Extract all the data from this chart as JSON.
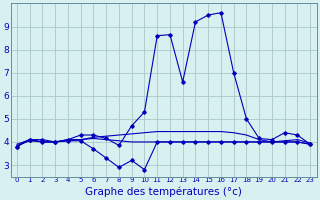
{
  "x": [
    0,
    1,
    2,
    3,
    4,
    5,
    6,
    7,
    8,
    9,
    10,
    11,
    12,
    13,
    14,
    15,
    16,
    17,
    18,
    19,
    20,
    21,
    22,
    23
  ],
  "y_main": [
    3.8,
    4.1,
    4.1,
    4.0,
    4.1,
    4.3,
    4.3,
    4.15,
    3.85,
    4.7,
    5.3,
    8.6,
    8.65,
    6.6,
    9.2,
    9.5,
    9.6,
    7.0,
    5.0,
    4.15,
    4.1,
    4.4,
    4.3,
    3.9
  ],
  "y_flat1": [
    3.9,
    4.1,
    4.0,
    4.0,
    4.1,
    4.1,
    4.15,
    4.1,
    4.05,
    4.0,
    4.0,
    4.0,
    4.0,
    4.0,
    4.0,
    4.0,
    4.0,
    4.0,
    4.0,
    4.0,
    4.0,
    4.05,
    4.1,
    3.95
  ],
  "y_flat2": [
    3.85,
    4.05,
    4.0,
    4.0,
    4.05,
    4.1,
    4.2,
    4.25,
    4.3,
    4.35,
    4.4,
    4.45,
    4.45,
    4.45,
    4.45,
    4.45,
    4.45,
    4.4,
    4.3,
    4.1,
    4.0,
    4.0,
    4.0,
    3.9
  ],
  "y_dip": [
    3.8,
    4.1,
    4.0,
    4.0,
    4.05,
    4.05,
    3.7,
    3.3,
    2.9,
    3.2,
    2.8,
    4.0,
    4.0,
    4.0,
    4.0,
    4.0,
    4.0,
    4.0,
    4.0,
    4.0,
    4.0,
    4.0,
    4.0,
    3.9
  ],
  "bg_color": "#d8f0f0",
  "grid_color": "#a8c8c8",
  "line_color": "#0000bb",
  "xlabel": "Graphe des températures (°c)",
  "xlabel_fontsize": 7.5,
  "ylim": [
    2.5,
    10.0
  ],
  "xlim": [
    -0.5,
    23.5
  ],
  "yticks": [
    3,
    4,
    5,
    6,
    7,
    8,
    9
  ],
  "xtick_labels": [
    "0",
    "1",
    "2",
    "3",
    "4",
    "5",
    "6",
    "7",
    "8",
    "9",
    "10",
    "11",
    "12",
    "13",
    "14",
    "15",
    "16",
    "17",
    "18",
    "19",
    "20",
    "21",
    "22",
    "23"
  ]
}
